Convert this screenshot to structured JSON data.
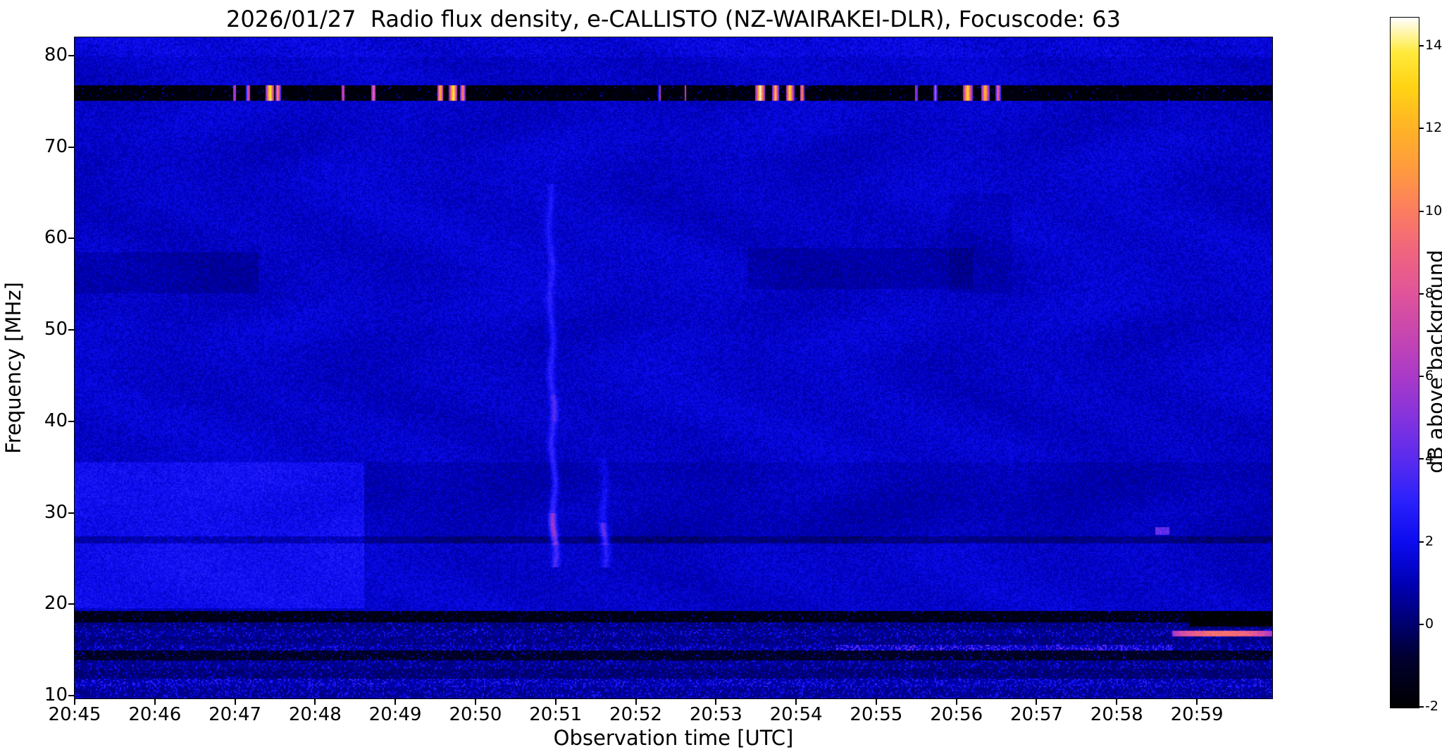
{
  "chart_data": {
    "type": "heatmap",
    "title": "2026/01/27  Radio flux density, e-CALLISTO (NZ-WAIRAKEI-DLR), Focuscode: 63",
    "xlabel": "Observation time [UTC]",
    "ylabel": "Frequency [MHz]",
    "x_ticks": [
      "20:45",
      "20:46",
      "20:47",
      "20:48",
      "20:49",
      "20:50",
      "20:51",
      "20:52",
      "20:53",
      "20:54",
      "20:55",
      "20:56",
      "20:57",
      "20:58",
      "20:59"
    ],
    "y_ticks": [
      80,
      70,
      60,
      50,
      40,
      30,
      20,
      10
    ],
    "x_range_minutes": [
      0,
      14.94
    ],
    "y_range_mhz": [
      9.7,
      82
    ],
    "grid": false,
    "colorbar": {
      "label": "dB above background",
      "ticks": [
        14,
        12,
        10,
        8,
        6,
        4,
        2,
        0,
        -2
      ],
      "vmin": -2,
      "vmax": 14.7
    },
    "colormap_stops": [
      [
        0.0,
        "#000000"
      ],
      [
        0.07,
        "#00002e"
      ],
      [
        0.12,
        "#00006e"
      ],
      [
        0.18,
        "#0000b4"
      ],
      [
        0.24,
        "#0c0cf0"
      ],
      [
        0.3,
        "#2b21fb"
      ],
      [
        0.36,
        "#5a2bee"
      ],
      [
        0.42,
        "#8433dd"
      ],
      [
        0.48,
        "#a93ac8"
      ],
      [
        0.54,
        "#c746b0"
      ],
      [
        0.6,
        "#e0549a"
      ],
      [
        0.66,
        "#f0647f"
      ],
      [
        0.72,
        "#fb7d60"
      ],
      [
        0.78,
        "#ff9a3e"
      ],
      [
        0.84,
        "#ffb326"
      ],
      [
        0.9,
        "#ffd314"
      ],
      [
        0.95,
        "#ffea3c"
      ],
      [
        1.0,
        "#ffffff"
      ]
    ],
    "background": {
      "base_db": 1.35,
      "noise_db": 1.0,
      "swirl_db": 0.22
    },
    "features": [
      {
        "type": "add",
        "t0": 0,
        "t1": 3.62,
        "f0": 19.5,
        "f1": 35.5,
        "dv": 0.75,
        "noise": 0.5
      },
      {
        "type": "add",
        "t0": 3.62,
        "t1": 14.94,
        "f0": 27.4,
        "f1": 35.5,
        "dv": -0.3,
        "noise": 0
      },
      {
        "type": "add",
        "t0": 0,
        "t1": 2.3,
        "f0": 54,
        "f1": 58.5,
        "dv": -0.5,
        "noise": 0
      },
      {
        "type": "add",
        "t0": 8.4,
        "t1": 11.2,
        "f0": 54.5,
        "f1": 59,
        "dv": -0.45,
        "noise": 0
      },
      {
        "type": "add",
        "t0": 10.9,
        "t1": 11.7,
        "f0": 54,
        "f1": 65,
        "dv": -0.3,
        "noise": 0
      },
      {
        "type": "add",
        "t0": 0,
        "t1": 14.94,
        "f0": 79.8,
        "f1": 82,
        "dv": 0.25,
        "noise": 0.7
      },
      {
        "type": "add",
        "t0": 0,
        "t1": 14.94,
        "f0": 26.6,
        "f1": 27.4,
        "dv": -1.1,
        "noise": 0.6
      },
      {
        "type": "speckle",
        "t0": 0,
        "t1": 14.94,
        "f0": 18.0,
        "f1": 19.3,
        "base": -1.5,
        "p": 0.1,
        "amp": 3.0
      },
      {
        "type": "speckle",
        "t0": 0,
        "t1": 14.94,
        "f0": 17.2,
        "f1": 18.0,
        "base": 0.1,
        "p": 0.3,
        "amp": 2.2
      },
      {
        "type": "speckle",
        "t0": 0,
        "t1": 14.94,
        "f0": 16.4,
        "f1": 17.2,
        "base": 0.4,
        "p": 0.33,
        "amp": 2.4
      },
      {
        "type": "speckle",
        "t0": 0,
        "t1": 14.94,
        "f0": 15.6,
        "f1": 16.4,
        "base": 0.2,
        "p": 0.3,
        "amp": 2.0
      },
      {
        "type": "speckle",
        "t0": 0,
        "t1": 14.94,
        "f0": 14.9,
        "f1": 15.6,
        "base": 0.5,
        "p": 0.38,
        "amp": 2.4
      },
      {
        "type": "speckle",
        "t0": 9.5,
        "t1": 13.7,
        "f0": 14.9,
        "f1": 15.6,
        "base": 1.0,
        "p": 0.5,
        "amp": 3.8
      },
      {
        "type": "speckle",
        "t0": 0,
        "t1": 14.94,
        "f0": 13.9,
        "f1": 14.9,
        "base": -1.1,
        "p": 0.15,
        "amp": 2.6
      },
      {
        "type": "speckle",
        "t0": 0,
        "t1": 14.94,
        "f0": 12.9,
        "f1": 13.9,
        "base": 0.3,
        "p": 0.33,
        "amp": 2.2
      },
      {
        "type": "speckle",
        "t0": 0,
        "t1": 14.94,
        "f0": 11.9,
        "f1": 12.9,
        "base": 0.0,
        "p": 0.28,
        "amp": 2.0
      },
      {
        "type": "speckle",
        "t0": 0,
        "t1": 14.94,
        "f0": 10.9,
        "f1": 11.9,
        "base": 0.7,
        "p": 0.45,
        "amp": 2.5
      },
      {
        "type": "speckle",
        "t0": 0,
        "t1": 14.94,
        "f0": 9.7,
        "f1": 10.9,
        "base": 0.4,
        "p": 0.4,
        "amp": 2.3
      },
      {
        "type": "speckle",
        "t0": 13.9,
        "t1": 14.94,
        "f0": 17.6,
        "f1": 19.3,
        "base": -1.9,
        "p": 0.03,
        "amp": 2.0
      },
      {
        "type": "streak",
        "t0": 13.7,
        "t1": 14.94,
        "f0": 16.45,
        "f1": 17.15,
        "v0": 5.0,
        "v1": 9.5
      },
      {
        "type": "set",
        "t0": 13.48,
        "t1": 13.66,
        "f0": 27.6,
        "f1": 28.5,
        "v": 4.2,
        "noise": 1.2
      }
    ],
    "rfi_band": {
      "f0": 75.1,
      "f1": 76.7,
      "base": -1.7,
      "noise": 0.7,
      "speckle_p": 0.05,
      "speckle_amp": 3.5,
      "bursts": [
        {
          "t": 2.0,
          "w": 0.025,
          "v": 8
        },
        {
          "t": 2.17,
          "w": 0.025,
          "v": 9
        },
        {
          "t": 2.44,
          "w": 0.05,
          "v": 15
        },
        {
          "t": 2.54,
          "w": 0.03,
          "v": 12
        },
        {
          "t": 3.35,
          "w": 0.022,
          "v": 9
        },
        {
          "t": 3.73,
          "w": 0.03,
          "v": 10
        },
        {
          "t": 4.56,
          "w": 0.04,
          "v": 13
        },
        {
          "t": 4.72,
          "w": 0.05,
          "v": 15
        },
        {
          "t": 4.84,
          "w": 0.03,
          "v": 12
        },
        {
          "t": 7.3,
          "w": 0.015,
          "v": 7
        },
        {
          "t": 7.62,
          "w": 0.015,
          "v": 7
        },
        {
          "t": 8.55,
          "w": 0.06,
          "v": 15
        },
        {
          "t": 8.74,
          "w": 0.04,
          "v": 13
        },
        {
          "t": 8.92,
          "w": 0.05,
          "v": 14
        },
        {
          "t": 9.07,
          "w": 0.03,
          "v": 11
        },
        {
          "t": 10.5,
          "w": 0.02,
          "v": 7
        },
        {
          "t": 10.74,
          "w": 0.02,
          "v": 8
        },
        {
          "t": 11.14,
          "w": 0.06,
          "v": 14
        },
        {
          "t": 11.36,
          "w": 0.05,
          "v": 13
        },
        {
          "t": 11.52,
          "w": 0.03,
          "v": 10
        }
      ]
    },
    "drift_bursts": [
      {
        "t": 5.93,
        "f0": 24,
        "f1": 66,
        "sigma": 0.045,
        "amp": 2.3,
        "lean": 0.0015,
        "knots": [
          {
            "f0": 26.5,
            "f1": 30,
            "amp": 2.2
          },
          {
            "f0": 40,
            "f1": 43,
            "amp": 0.7
          }
        ]
      },
      {
        "t": 6.6,
        "f0": 24,
        "f1": 36,
        "sigma": 0.05,
        "amp": 1.6,
        "lean": 0.0015,
        "knots": [
          {
            "f0": 26.5,
            "f1": 29,
            "amp": 1.8
          }
        ]
      }
    ]
  }
}
